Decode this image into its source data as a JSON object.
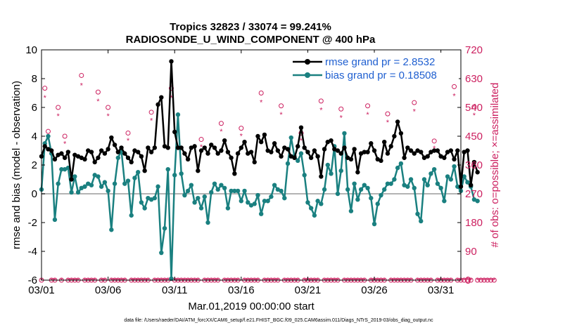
{
  "chart_data": {
    "type": "line",
    "title": "Tropics 32823 / 33074 = 99.241%",
    "subtitle": "RADIOSONDE_U_WIND_COMPONENT @ 400 hPa",
    "xlabel": "Mar.01,2019 00:00:00 start",
    "ylabel": "rmse and bias (model - observation)",
    "y2label": "# of obs: o=possible; ×=assimilated",
    "xlim": [
      0,
      31.5
    ],
    "ylim": [
      -6,
      10
    ],
    "y2lim": [
      0,
      720
    ],
    "xticks": [
      0,
      5,
      10,
      15,
      20,
      25,
      30
    ],
    "xtick_labels": [
      "03/01",
      "03/06",
      "03/11",
      "03/16",
      "03/21",
      "03/26",
      "03/31"
    ],
    "yticks": [
      -6,
      -4,
      -2,
      0,
      2,
      4,
      6,
      8,
      10
    ],
    "ytick_labels": [
      "-6",
      "-4",
      "-2",
      "0",
      "2",
      "4",
      "6",
      "8",
      "10"
    ],
    "y2ticks": [
      0,
      90,
      180,
      270,
      360,
      450,
      540,
      630,
      720
    ],
    "y2tick_labels": [
      "0",
      "90",
      "180",
      "270",
      "360",
      "450",
      "540",
      "630",
      "720"
    ],
    "x_step": 0.25,
    "legend": [
      "rmse grand pr = 2.8532",
      "bias grand pr = 0.18508"
    ],
    "legend_location": "top-right",
    "colors": {
      "rmse": "#000000",
      "bias": "#1a8080",
      "obs": "#cc1f5f",
      "zero_line": "#b3b3b3"
    },
    "series": [
      {
        "name": "rmse",
        "values": [
          2.6,
          3.3,
          3.1,
          3.0,
          2.4,
          2.7,
          2.8,
          2.5,
          2.9,
          1.0,
          2.7,
          2.6,
          2.5,
          2.4,
          3.0,
          2.9,
          2.2,
          2.5,
          3.0,
          2.8,
          3.1,
          3.9,
          3.4,
          2.9,
          3.2,
          2.8,
          2.5,
          2.2,
          3.0,
          2.9,
          2.6,
          1.6,
          3.2,
          2.9,
          3.2,
          6.2,
          6.7,
          3.3,
          3.2,
          9.2,
          4.3,
          3.2,
          3.2,
          2.8,
          2.4,
          3.2,
          3.3,
          1.6,
          3.0,
          3.2,
          2.8,
          3.4,
          3.2,
          2.8,
          3.0,
          3.7,
          2.9,
          2.5,
          1.4,
          2.8,
          3.2,
          3.6,
          2.8,
          2.9,
          2.2,
          4.0,
          3.6,
          4.1,
          3.0,
          2.9,
          3.5,
          3.0,
          2.6,
          3.2,
          3.1,
          2.6,
          2.5,
          3.3,
          4.6,
          3.2,
          2.9,
          2.5,
          3.0,
          2.6,
          1.2,
          3.1,
          3.6,
          3.7,
          3.1,
          3.0,
          2.8,
          3.2,
          2.5,
          2.4,
          3.1,
          1.5,
          2.8,
          2.9,
          2.9,
          3.5,
          3.0,
          2.4,
          2.3,
          3.6,
          2.8,
          3.3,
          4.0,
          5.0,
          4.2,
          2.5,
          3.2,
          3.0,
          2.8,
          3.0,
          2.9,
          2.5,
          2.6,
          2.9,
          3.0,
          3.0,
          2.6,
          2.5,
          2.9,
          3.0,
          2.4,
          3.0,
          0.5,
          2.9,
          3.0,
          0.6,
          2.2,
          1.5
        ]
      },
      {
        "name": "bias",
        "values": [
          0.3,
          3.5,
          4.0,
          2.8,
          -1.8,
          0.7,
          1.7,
          1.7,
          1.8,
          0.1,
          1.2,
          0.1,
          0.4,
          0.5,
          0.7,
          0.6,
          1.3,
          1.2,
          0.5,
          0.8,
          0.2,
          -2.5,
          0.7,
          2.5,
          3.0,
          0.7,
          0.9,
          -1.5,
          1.1,
          1.5,
          -0.6,
          -1.0,
          -0.3,
          -0.4,
          -0.3,
          0.5,
          -4.1,
          -2.4,
          1.7,
          -5.9,
          1.3,
          5.5,
          1.4,
          -0.1,
          0.2,
          0.6,
          -0.6,
          -0.3,
          -1.0,
          -0.2,
          -2.0,
          0.1,
          0.7,
          0.3,
          0.6,
          0.4,
          -1.0,
          0.2,
          0.2,
          0.2,
          -0.5,
          0.2,
          -0.6,
          -0.8,
          -0.7,
          -0.1,
          -1.4,
          -0.5,
          -0.5,
          -0.2,
          0.6,
          0.3,
          0.2,
          -0.3,
          2.1,
          3.9,
          2.6,
          2.3,
          2.8,
          1.3,
          -0.6,
          -1.0,
          -1.5,
          -0.5,
          -0.7,
          0.3,
          2.0,
          1.4,
          3.3,
          0.0,
          1.6,
          4.2,
          0.3,
          -1.2,
          0.7,
          -0.4,
          0.3,
          0.6,
          0.4,
          -0.3,
          -2.1,
          -0.7,
          -0.1,
          0.3,
          0.7,
          0.7,
          1.0,
          1.8,
          2.1,
          0.6,
          0.5,
          1.0,
          0.4,
          -1.4,
          -1.9,
          1.0,
          0.6,
          1.4,
          1.7,
          0.7,
          0.4,
          -0.5,
          1.2,
          1.0,
          1.9,
          0.5,
          0.2,
          1.2,
          0.8,
          0.5,
          -0.4,
          -0.5
        ]
      },
      {
        "name": "obs_possible",
        "values": [
          0,
          600,
          465,
          0,
          0,
          540,
          0,
          450,
          0,
          0,
          0,
          0,
          640,
          0,
          0,
          0,
          0,
          588,
          0,
          0,
          540,
          0,
          0,
          0,
          0,
          0,
          460,
          0,
          0,
          0,
          0,
          0,
          0,
          525,
          0,
          0,
          0,
          0,
          0,
          600,
          0,
          0,
          0,
          0,
          0,
          0,
          0,
          0,
          440,
          0,
          0,
          0,
          0,
          0,
          490,
          0,
          0,
          0,
          0,
          0,
          475,
          0,
          0,
          0,
          0,
          0,
          585,
          0,
          0,
          0,
          0,
          0,
          545,
          0,
          0,
          0,
          0,
          0,
          460,
          0,
          0,
          0,
          0,
          0,
          560,
          0,
          0,
          0,
          0,
          0,
          535,
          0,
          0,
          0,
          0,
          0,
          0,
          0,
          545,
          0,
          0,
          0,
          0,
          0,
          520,
          0,
          0,
          0,
          0,
          0,
          0,
          0,
          555,
          0,
          0,
          0,
          0,
          0,
          435,
          0,
          0,
          0,
          0,
          0,
          605,
          0,
          0,
          0,
          0,
          0,
          542,
          0,
          0,
          0,
          0,
          0,
          0
        ]
      }
    ]
  },
  "footer": {
    "note": "data file: /Users/raeder/DAI/ATM_forcXX/CAM6_setup/f.e21.FHIST_BGC.f09_025.CAM6assim.011/Diags_NTrS_2019-03/obs_diag_output.nc"
  }
}
